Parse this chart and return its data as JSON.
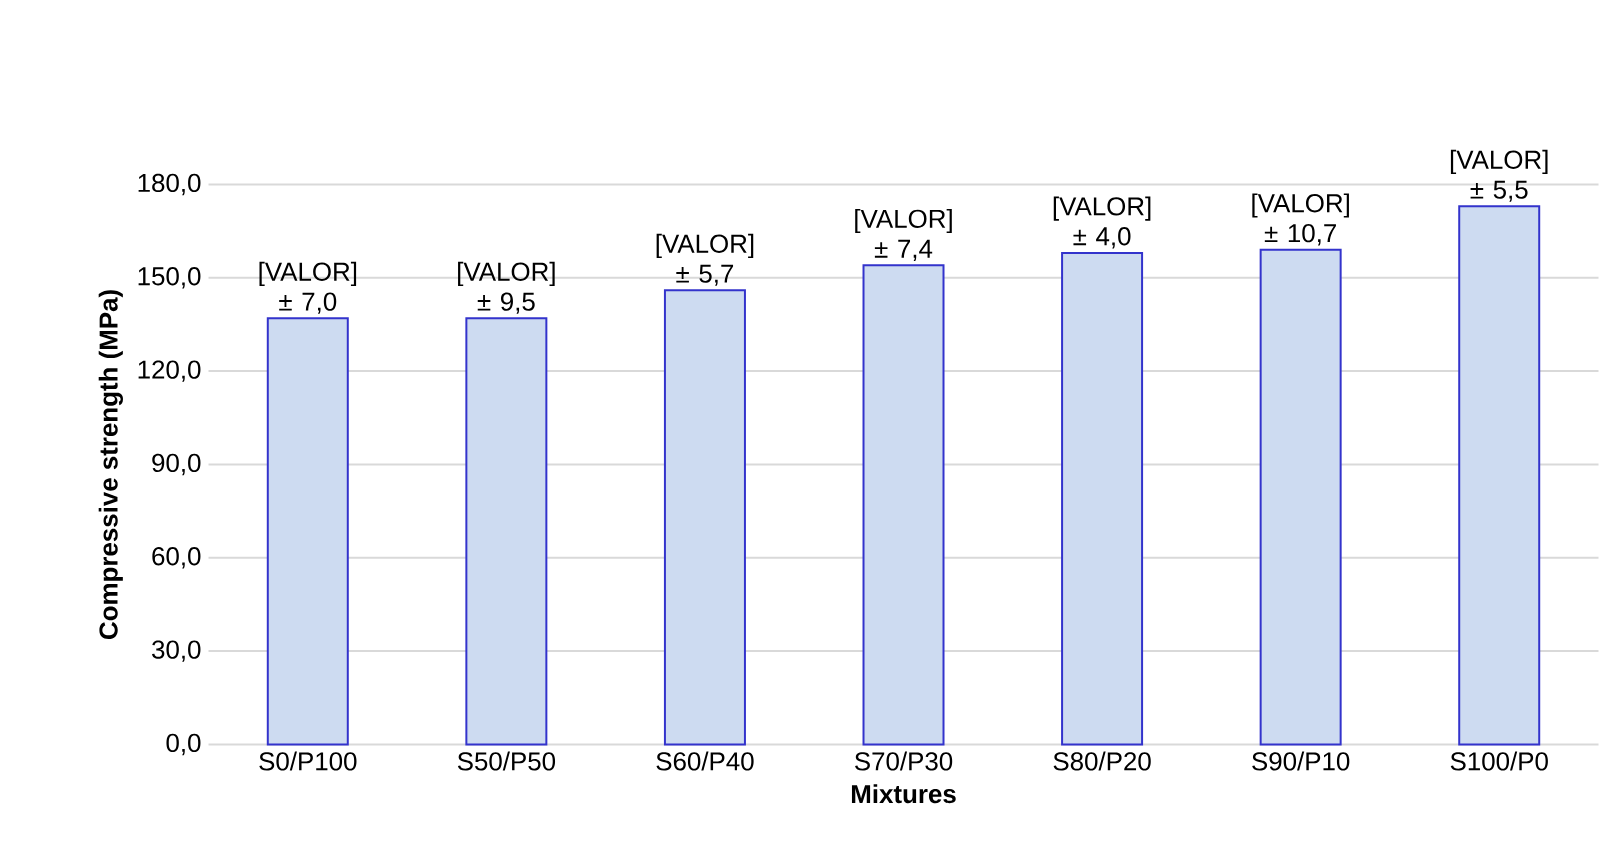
{
  "chart_data": {
    "type": "bar",
    "xlabel": "Mixtures",
    "ylabel": "Compressive strength (MPa)",
    "categories": [
      "S0/P100",
      "S50/P50",
      "S60/P40",
      "S70/P30",
      "S80/P20",
      "S90/P10",
      "S100/P0"
    ],
    "values": [
      137,
      137,
      146,
      154,
      158,
      159,
      173
    ],
    "annotations": [
      {
        "text": "[VALOR] ± 7,0",
        "x": "S0/P100",
        "y": 137
      },
      {
        "text": "[VALOR] ± 9,5",
        "x": "S50/P50",
        "y": 137
      },
      {
        "text": "[VALOR] ± 5,7",
        "x": "S60/P40",
        "y": 146
      },
      {
        "text": "[VALOR] ± 7,4",
        "x": "S70/P30",
        "y": 154
      },
      {
        "text": "[VALOR] ± 4,0",
        "x": "S80/P20",
        "y": 158
      },
      {
        "text": "[VALOR] ± 10,7",
        "x": "S90/P10",
        "y": 159
      },
      {
        "text": "[VALOR] ± 5,5",
        "x": "S100/P0",
        "y": 173
      }
    ],
    "color": "#cddbf1",
    "ylim": [
      0,
      180
    ],
    "yticks": [
      {
        "value": 0,
        "label": "0,0"
      },
      {
        "value": 30,
        "label": "30,0"
      },
      {
        "value": 60,
        "label": "60,0"
      },
      {
        "value": 90,
        "label": "90,0"
      },
      {
        "value": 120,
        "label": "120,0"
      },
      {
        "value": 150,
        "label": "150,0"
      },
      {
        "value": 180,
        "label": "180,0"
      }
    ],
    "grid": "y"
  }
}
